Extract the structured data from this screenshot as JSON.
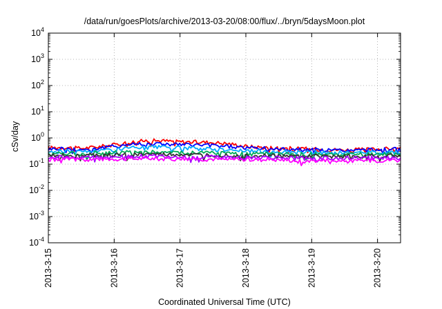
{
  "chart_data": {
    "type": "line",
    "title": "/data/run/goesPlots/archive/2013-03-20/08:00/flux/../bryn/5daysMoon.plot",
    "xlabel": "Coordinated Universal Time (UTC)",
    "ylabel": "cSv/day",
    "yscale": "log",
    "ylim": [
      0.0001,
      10000
    ],
    "xlim_days": [
      0,
      5.35
    ],
    "grid": true,
    "x_ticks": [
      {
        "day": 0,
        "label": "2013-3-15"
      },
      {
        "day": 1,
        "label": "2013-3-16"
      },
      {
        "day": 2,
        "label": "2013-3-17"
      },
      {
        "day": 3,
        "label": "2013-3-18"
      },
      {
        "day": 4,
        "label": "2013-3-19"
      },
      {
        "day": 5,
        "label": "2013-3-20"
      }
    ],
    "y_ticks": [
      {
        "value": 0.0001,
        "base": "10",
        "exp": "-4"
      },
      {
        "value": 0.001,
        "base": "10",
        "exp": "-3"
      },
      {
        "value": 0.01,
        "base": "10",
        "exp": "-2"
      },
      {
        "value": 0.1,
        "base": "10",
        "exp": "-1"
      },
      {
        "value": 1,
        "base": "10",
        "exp": "0"
      },
      {
        "value": 10,
        "base": "10",
        "exp": "1"
      },
      {
        "value": 100,
        "base": "10",
        "exp": "2"
      },
      {
        "value": 1000,
        "base": "10",
        "exp": "3"
      },
      {
        "value": 10000,
        "base": "10",
        "exp": "4"
      }
    ],
    "x": [
      0,
      0.25,
      0.5,
      0.75,
      1.0,
      1.25,
      1.5,
      1.75,
      2.0,
      2.25,
      2.5,
      2.75,
      3.0,
      3.25,
      3.5,
      3.75,
      4.0,
      4.25,
      4.5,
      4.75,
      5.0,
      5.25,
      5.35
    ],
    "series": [
      {
        "color": "#ff0000",
        "values": [
          0.42,
          0.44,
          0.4,
          0.46,
          0.55,
          0.7,
          0.8,
          0.78,
          0.72,
          0.7,
          0.68,
          0.6,
          0.48,
          0.44,
          0.42,
          0.4,
          0.38,
          0.36,
          0.35,
          0.36,
          0.38,
          0.4,
          0.38
        ]
      },
      {
        "color": "#0000ff",
        "values": [
          0.38,
          0.4,
          0.36,
          0.4,
          0.48,
          0.58,
          0.62,
          0.6,
          0.56,
          0.54,
          0.52,
          0.48,
          0.42,
          0.4,
          0.38,
          0.37,
          0.36,
          0.34,
          0.33,
          0.34,
          0.36,
          0.38,
          0.35
        ]
      },
      {
        "color": "#00aaff",
        "values": [
          0.3,
          0.32,
          0.3,
          0.33,
          0.36,
          0.42,
          0.45,
          0.44,
          0.42,
          0.4,
          0.38,
          0.36,
          0.32,
          0.31,
          0.3,
          0.29,
          0.28,
          0.27,
          0.27,
          0.28,
          0.29,
          0.3,
          0.28
        ]
      },
      {
        "color": "#00aa55",
        "values": [
          0.26,
          0.27,
          0.25,
          0.27,
          0.28,
          0.29,
          0.3,
          0.29,
          0.28,
          0.28,
          0.27,
          0.26,
          0.25,
          0.25,
          0.24,
          0.24,
          0.24,
          0.23,
          0.23,
          0.24,
          0.24,
          0.25,
          0.24
        ]
      },
      {
        "color": "#333333",
        "values": [
          0.21,
          0.22,
          0.21,
          0.22,
          0.23,
          0.23,
          0.24,
          0.23,
          0.23,
          0.22,
          0.22,
          0.22,
          0.21,
          0.21,
          0.21,
          0.2,
          0.2,
          0.2,
          0.2,
          0.2,
          0.21,
          0.21,
          0.2
        ]
      },
      {
        "color": "#aa00ff",
        "values": [
          0.18,
          0.19,
          0.18,
          0.19,
          0.19,
          0.2,
          0.2,
          0.2,
          0.19,
          0.19,
          0.19,
          0.18,
          0.18,
          0.18,
          0.18,
          0.17,
          0.17,
          0.17,
          0.17,
          0.17,
          0.18,
          0.18,
          0.17
        ]
      },
      {
        "color": "#ff00ff",
        "values": [
          0.15,
          0.16,
          0.15,
          0.16,
          0.16,
          0.16,
          0.17,
          0.16,
          0.16,
          0.16,
          0.16,
          0.15,
          0.15,
          0.15,
          0.15,
          0.14,
          0.14,
          0.14,
          0.13,
          0.14,
          0.14,
          0.15,
          0.14
        ]
      }
    ]
  }
}
